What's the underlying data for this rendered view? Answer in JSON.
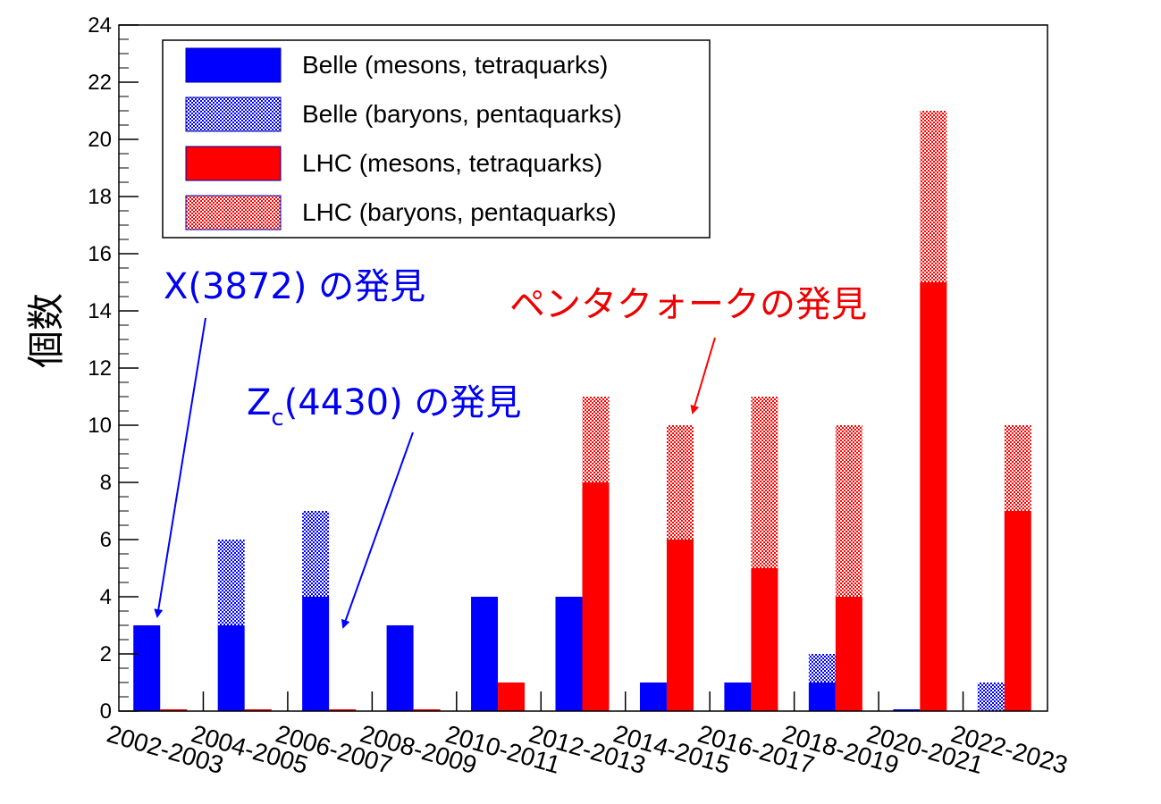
{
  "chart_data": {
    "type": "bar",
    "stacked": true,
    "title": "",
    "xlabel": "",
    "ylabel": "個数",
    "ylim": [
      0,
      24
    ],
    "yticks": [
      0,
      2,
      4,
      6,
      8,
      10,
      12,
      14,
      16,
      18,
      20,
      22,
      24
    ],
    "categories": [
      "2002-2003",
      "2004-2005",
      "2006-2007",
      "2008-2009",
      "2010-2011",
      "2012-2013",
      "2014-2015",
      "2016-2017",
      "2018-2019",
      "2020-2021",
      "2022-2023"
    ],
    "legend_position": "top-left",
    "grid": false,
    "groups": [
      {
        "experiment": "Belle",
        "stack": [
          {
            "name": "Belle (mesons, tetraquarks)",
            "color": "#0000ff",
            "pattern": "solid",
            "values": [
              3,
              3,
              4,
              3,
              4,
              4,
              1,
              1,
              1,
              0,
              0
            ]
          },
          {
            "name": "Belle (baryons, pentaquarks)",
            "color": "#0000ff",
            "pattern": "dotted",
            "values": [
              0,
              3,
              3,
              0,
              0,
              0,
              0,
              0,
              1,
              0,
              1
            ]
          }
        ]
      },
      {
        "experiment": "LHC",
        "stack": [
          {
            "name": "LHC (mesons, tetraquarks)",
            "color": "#ff0000",
            "pattern": "solid",
            "values": [
              0,
              0,
              0,
              0,
              1,
              8,
              6,
              5,
              4,
              15,
              7
            ]
          },
          {
            "name": "LHC (baryons, pentaquarks)",
            "color": "#ff0000",
            "pattern": "dotted",
            "values": [
              0,
              0,
              0,
              0,
              0,
              3,
              4,
              6,
              6,
              6,
              3
            ]
          }
        ]
      }
    ],
    "annotations": [
      {
        "id": "x3872",
        "text": "X(3872) の発見",
        "color": "#0000ff",
        "points_to": "2002-2003"
      },
      {
        "id": "zc4430",
        "text_main": "Z",
        "text_sub": "c",
        "text_rest": "(4430) の発見",
        "color": "#0000ff",
        "points_to": "2006-2007"
      },
      {
        "id": "pentaquark",
        "text": "ペンタクォークの発見",
        "color": "#ff0000",
        "points_to": "2014-2015"
      }
    ]
  }
}
